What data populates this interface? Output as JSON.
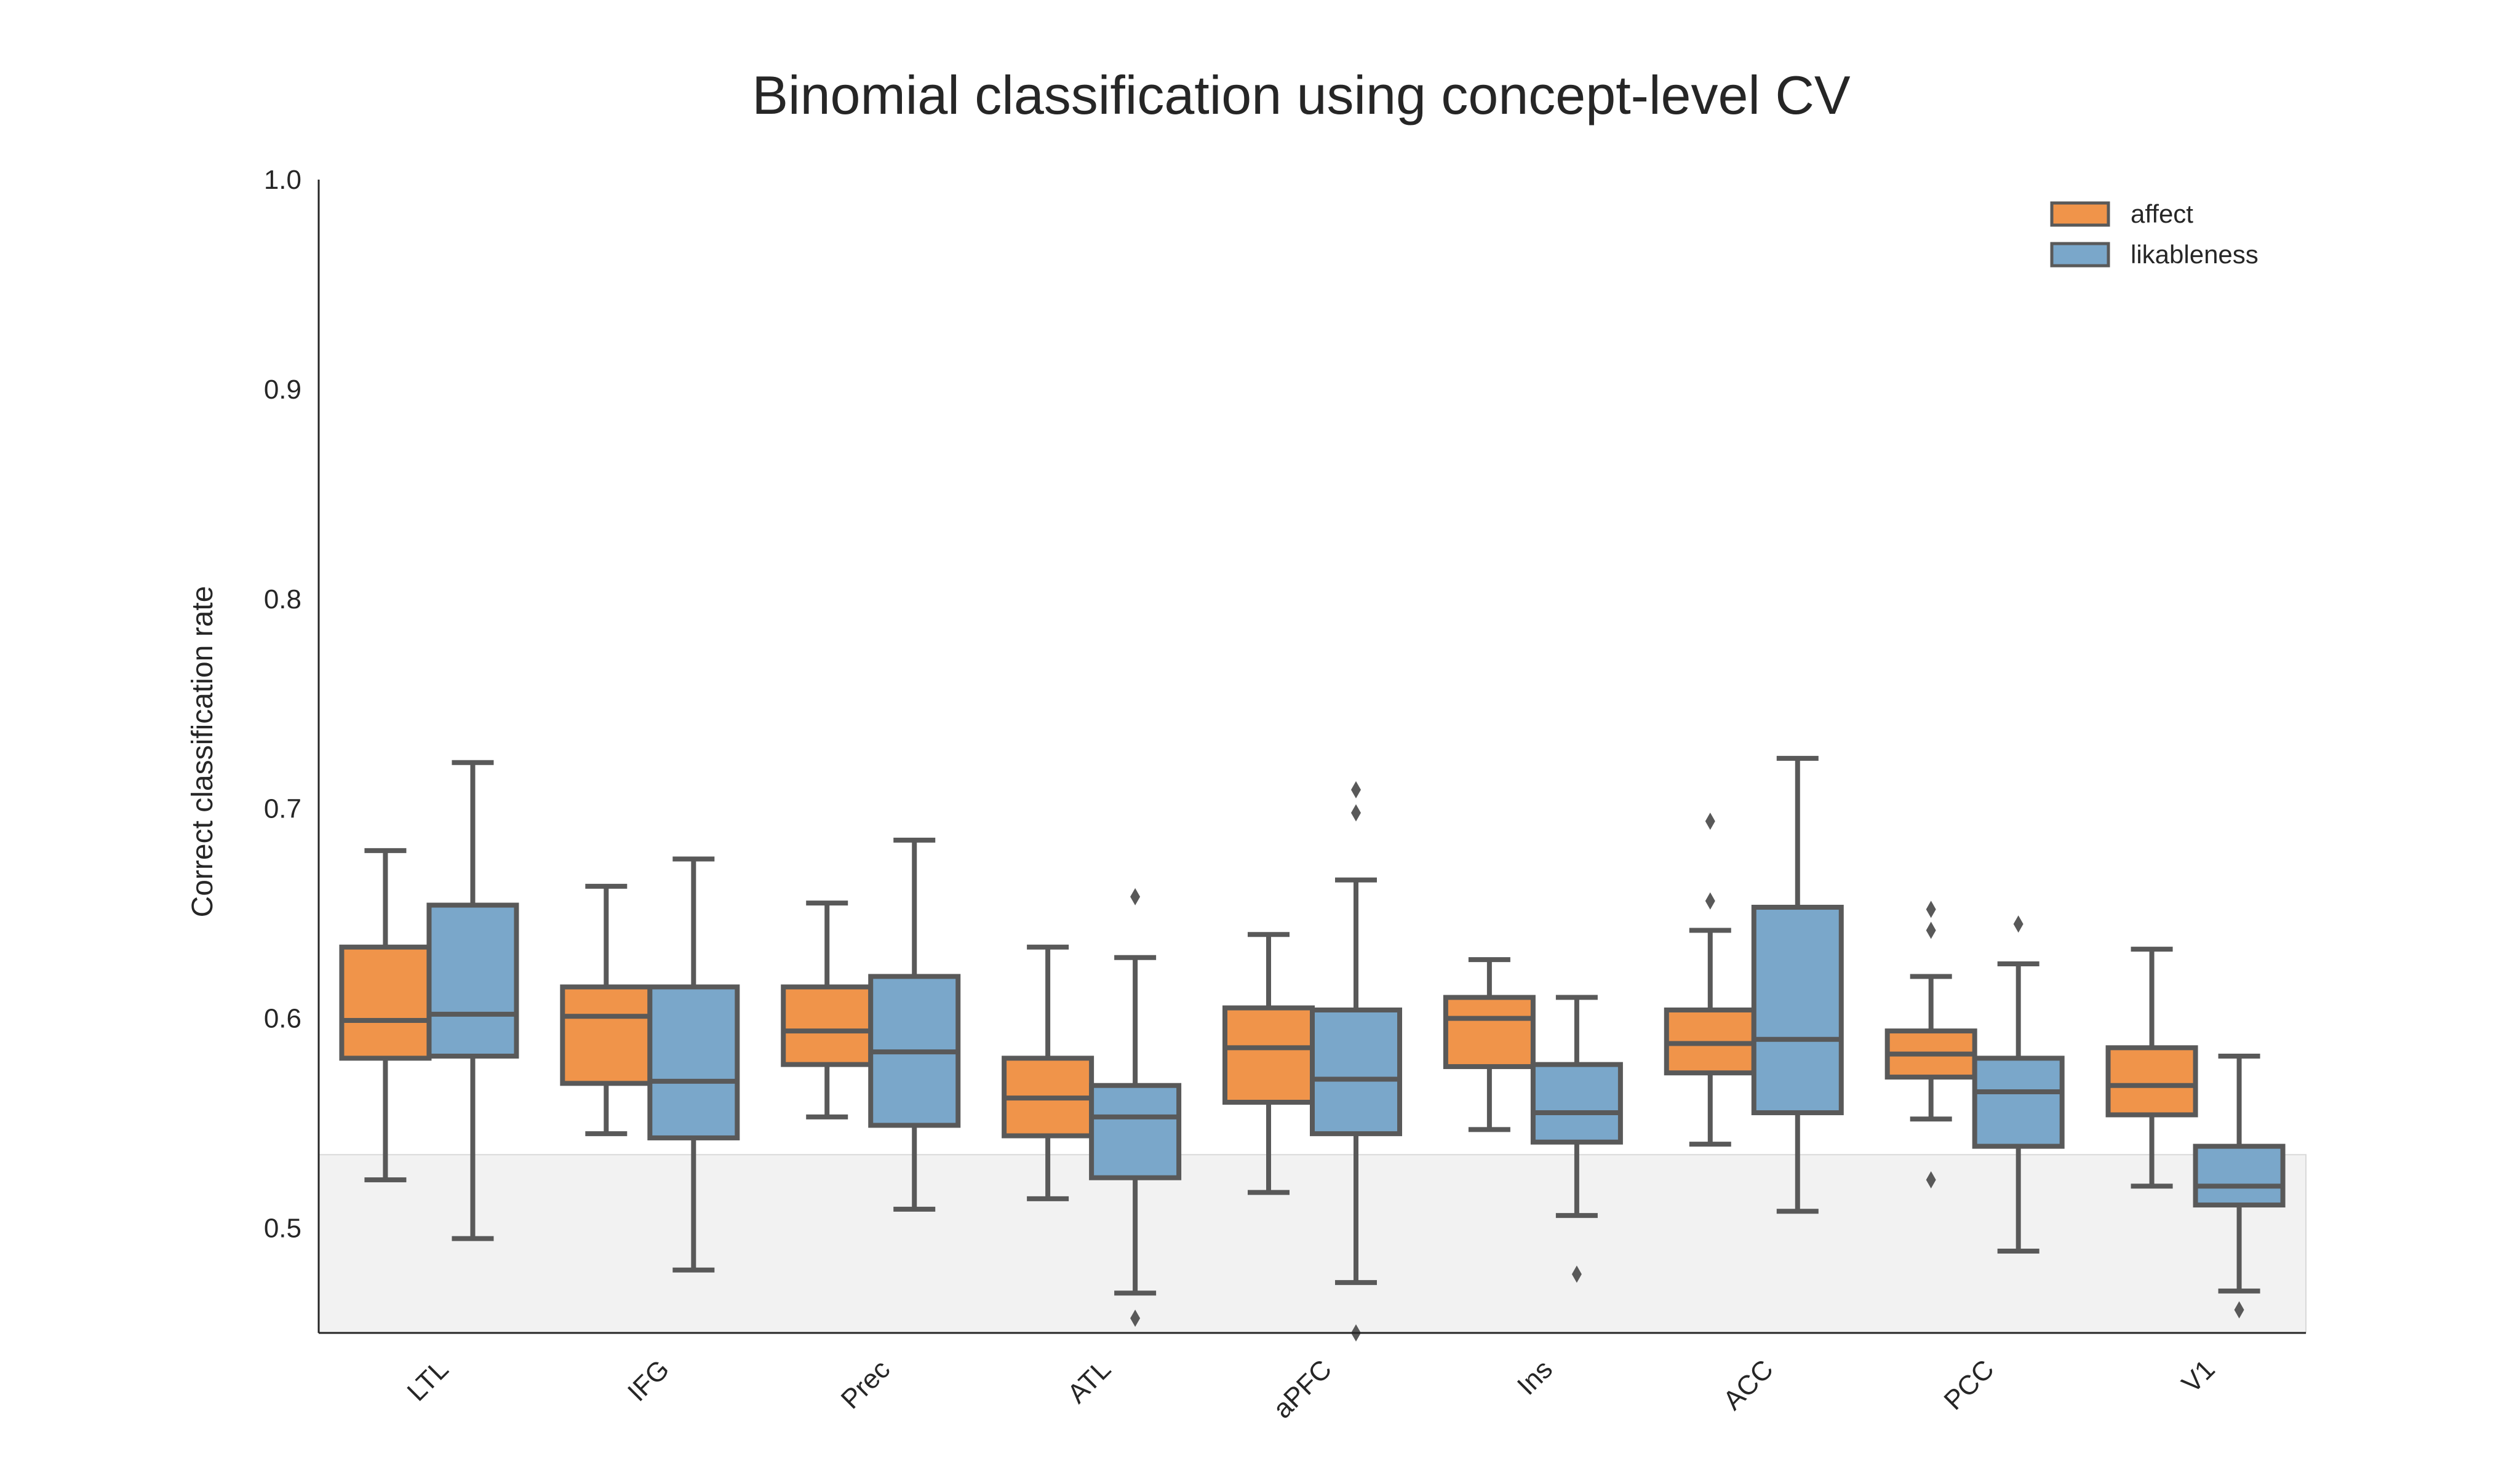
{
  "chart_data": {
    "type": "box",
    "title": "Binomial classification using concept-level CV",
    "ylabel": "Correct classification rate",
    "xlabel": "",
    "ylim": [
      0.45,
      1.0
    ],
    "yticks": [
      0.5,
      0.6,
      0.7,
      0.8,
      0.9,
      1.0
    ],
    "ytick_labels": [
      "0.5",
      "0.6",
      "0.7",
      "0.8",
      "0.9",
      "1.0"
    ],
    "categories": [
      "LTL",
      "IFG",
      "Prec",
      "ATL",
      "aPFC",
      "Ins",
      "ACC",
      "PCC",
      "V1"
    ],
    "chance_band": [
      0.45,
      0.535
    ],
    "legend_position": "top-right",
    "colors": {
      "box_edge": "#595959",
      "band": "#f2f2f2",
      "axis": "#262626"
    },
    "series": [
      {
        "name": "affect",
        "color": "#f0944a",
        "boxes": [
          {
            "whislo": 0.523,
            "q1": 0.581,
            "med": 0.599,
            "q3": 0.634,
            "whishi": 0.68,
            "fliers": []
          },
          {
            "whislo": 0.545,
            "q1": 0.569,
            "med": 0.601,
            "q3": 0.615,
            "whishi": 0.663,
            "fliers": []
          },
          {
            "whislo": 0.553,
            "q1": 0.578,
            "med": 0.594,
            "q3": 0.615,
            "whishi": 0.655,
            "fliers": []
          },
          {
            "whislo": 0.514,
            "q1": 0.544,
            "med": 0.562,
            "q3": 0.581,
            "whishi": 0.634,
            "fliers": []
          },
          {
            "whislo": 0.517,
            "q1": 0.56,
            "med": 0.586,
            "q3": 0.605,
            "whishi": 0.64,
            "fliers": []
          },
          {
            "whislo": 0.547,
            "q1": 0.577,
            "med": 0.6,
            "q3": 0.61,
            "whishi": 0.628,
            "fliers": []
          },
          {
            "whislo": 0.54,
            "q1": 0.574,
            "med": 0.588,
            "q3": 0.604,
            "whishi": 0.642,
            "fliers": [
              0.656,
              0.694
            ]
          },
          {
            "whislo": 0.552,
            "q1": 0.572,
            "med": 0.583,
            "q3": 0.594,
            "whishi": 0.62,
            "fliers": [
              0.523,
              0.642,
              0.652
            ]
          },
          {
            "whislo": 0.52,
            "q1": 0.554,
            "med": 0.568,
            "q3": 0.586,
            "whishi": 0.633,
            "fliers": []
          }
        ]
      },
      {
        "name": "likableness",
        "color": "#7aa7ca",
        "boxes": [
          {
            "whislo": 0.495,
            "q1": 0.582,
            "med": 0.602,
            "q3": 0.654,
            "whishi": 0.722,
            "fliers": []
          },
          {
            "whislo": 0.48,
            "q1": 0.543,
            "med": 0.57,
            "q3": 0.615,
            "whishi": 0.676,
            "fliers": []
          },
          {
            "whislo": 0.509,
            "q1": 0.549,
            "med": 0.584,
            "q3": 0.62,
            "whishi": 0.685,
            "fliers": []
          },
          {
            "whislo": 0.469,
            "q1": 0.524,
            "med": 0.553,
            "q3": 0.568,
            "whishi": 0.629,
            "fliers": [
              0.457,
              0.658
            ]
          },
          {
            "whislo": 0.474,
            "q1": 0.545,
            "med": 0.571,
            "q3": 0.604,
            "whishi": 0.666,
            "fliers": [
              0.45,
              0.698,
              0.709
            ]
          },
          {
            "whislo": 0.506,
            "q1": 0.541,
            "med": 0.555,
            "q3": 0.578,
            "whishi": 0.61,
            "fliers": [
              0.478
            ]
          },
          {
            "whislo": 0.508,
            "q1": 0.555,
            "med": 0.59,
            "q3": 0.653,
            "whishi": 0.724,
            "fliers": []
          },
          {
            "whislo": 0.489,
            "q1": 0.539,
            "med": 0.565,
            "q3": 0.581,
            "whishi": 0.626,
            "fliers": [
              0.645
            ]
          },
          {
            "whislo": 0.47,
            "q1": 0.511,
            "med": 0.52,
            "q3": 0.539,
            "whishi": 0.582,
            "fliers": [
              0.461
            ]
          }
        ]
      }
    ]
  }
}
